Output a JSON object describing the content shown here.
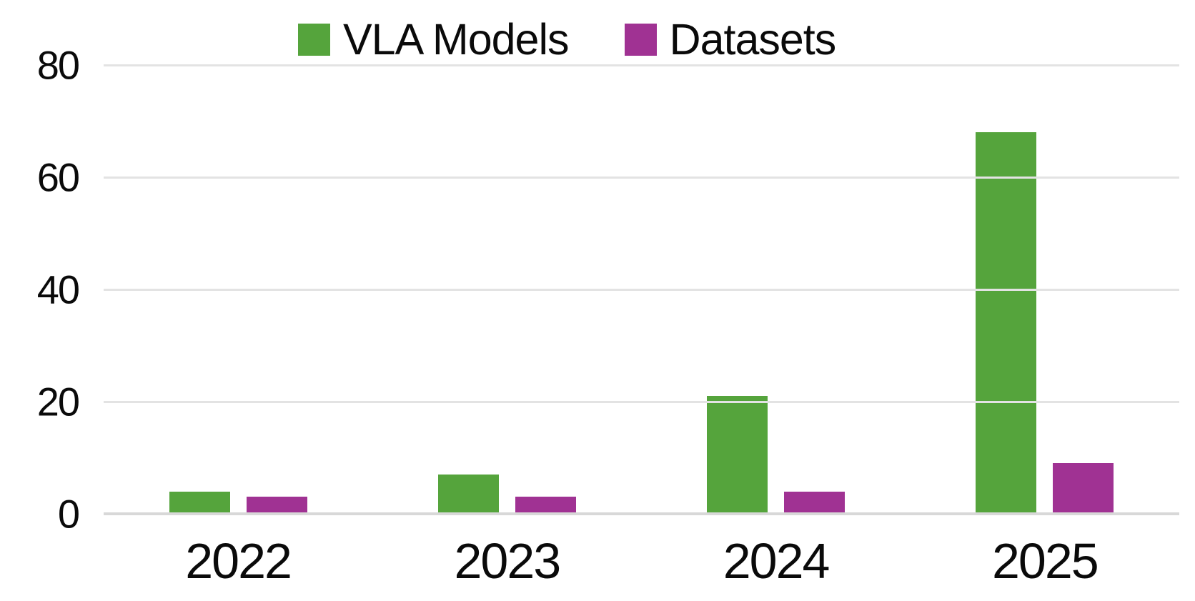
{
  "chart_data": {
    "type": "bar",
    "categories": [
      "2022",
      "2023",
      "2024",
      "2025"
    ],
    "series": [
      {
        "name": "VLA Models",
        "color": "#55A43C",
        "values": [
          4,
          7,
          21,
          68
        ]
      },
      {
        "name": "Datasets",
        "color": "#A03293",
        "values": [
          3,
          3,
          4,
          9
        ]
      }
    ],
    "title": "",
    "xlabel": "",
    "ylabel": "",
    "ylim": [
      0,
      80
    ],
    "yticks": [
      0,
      20,
      40,
      60,
      80
    ],
    "grid": "horizontal",
    "gridline_color": "#e3e3e3",
    "baseline_color": "#d8d8d8",
    "legend_position": "top-center",
    "background_color": "#ffffff"
  }
}
